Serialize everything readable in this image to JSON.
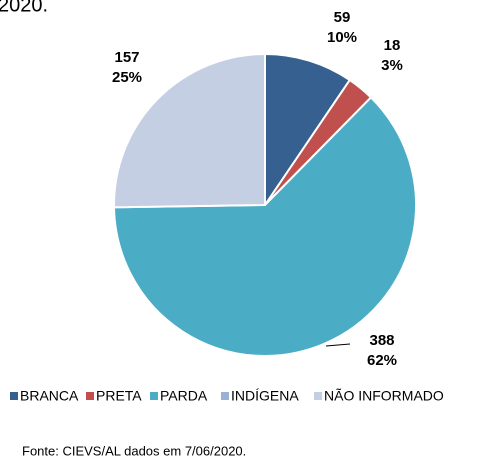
{
  "header_text": "2020.",
  "chart_data": {
    "type": "pie",
    "categories": [
      "BRANCA",
      "PRETA",
      "PARDA",
      "INDÍGENA",
      "NÃO INFORMADO"
    ],
    "values": [
      59,
      18,
      388,
      0,
      157
    ],
    "percent_labels": [
      "10%",
      "3%",
      "62%",
      null,
      "25%"
    ],
    "colors": [
      "#35608f",
      "#c0504d",
      "#4bacc6",
      "#9bb0d6",
      "#c5cfe3"
    ],
    "legend": "bottom"
  },
  "source": "Fonte: CIEVS/AL dados em 7/06/2020."
}
